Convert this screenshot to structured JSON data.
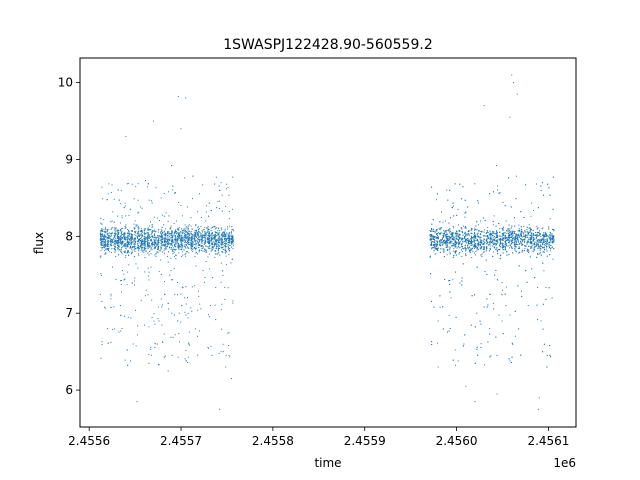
{
  "chart_data": {
    "type": "scatter",
    "title": "1SWASPJ122428.90-560559.2",
    "xlabel": "time",
    "ylabel": "flux",
    "x_offset_label": "1e6",
    "xlim": [
      2455590,
      2456130
    ],
    "ylim": [
      5.52,
      10.32
    ],
    "x_ticks": [
      2455600,
      2455700,
      2455800,
      2455900,
      2456000,
      2456100
    ],
    "x_tick_labels": [
      "2.4556",
      "2.4557",
      "2.4558",
      "2.4559",
      "2.4560",
      "2.4561"
    ],
    "y_ticks": [
      6,
      7,
      8,
      9,
      10
    ],
    "y_tick_labels": [
      "6",
      "7",
      "8",
      "9",
      "10"
    ],
    "grid": false,
    "legend": "none",
    "point_color": "#1f77b4",
    "series": [
      {
        "x": [
          2455615,
          2455618,
          2455622,
          2455625,
          2455628,
          2455632,
          2455636,
          2455640,
          2455643,
          2455647,
          2455650,
          2455653,
          2455657,
          2455660,
          2455664,
          2455667,
          2455671,
          2455674,
          2455678,
          2455681,
          2455685,
          2455688,
          2455692,
          2455695,
          2455699,
          2455702,
          2455706,
          2455709,
          2455713,
          2455716,
          2455720,
          2455724,
          2455727,
          2455731,
          2455734,
          2455738,
          2455741,
          2455745,
          2455749,
          2455752,
          2455755,
          2455974,
          2455977,
          2455981,
          2455984,
          2455988,
          2455991,
          2455995,
          2455998,
          2456002,
          2456005,
          2456009,
          2456012,
          2456016,
          2456019,
          2456023,
          2456026,
          2456030,
          2456033,
          2456037,
          2456040,
          2456044,
          2456047,
          2456051,
          2456054,
          2456058,
          2456061,
          2456065,
          2456068,
          2456072,
          2456075,
          2456079,
          2456082,
          2456086,
          2456089,
          2456093,
          2456096,
          2456100,
          2456103,
          2456106,
          2455620,
          2455634,
          2455648,
          2455662,
          2455676,
          2455690,
          2455704,
          2455718,
          2455732,
          2455746,
          2455980,
          2455994,
          2456008,
          2456022,
          2456036,
          2456050,
          2456064,
          2456078,
          2456092,
          2456104
        ],
        "y": [
          7.95,
          8.1,
          7.8,
          8.2,
          7.85,
          8.05,
          7.9,
          8.15,
          7.75,
          8.0,
          8.2,
          7.9,
          8.1,
          7.85,
          8.05,
          7.95,
          8.25,
          7.8,
          8.0,
          8.15,
          7.9,
          8.1,
          7.85,
          8.2,
          7.95,
          8.05,
          7.8,
          8.15,
          7.9,
          8.0,
          8.1,
          7.85,
          8.2,
          7.95,
          8.05,
          7.9,
          8.1,
          7.8,
          8.0,
          7.95,
          7.9,
          8.0,
          7.85,
          8.1,
          7.9,
          8.2,
          7.95,
          8.05,
          7.8,
          8.15,
          7.9,
          8.25,
          7.85,
          8.1,
          7.95,
          8.0,
          8.2,
          7.8,
          8.05,
          7.9,
          8.15,
          7.85,
          8.1,
          7.95,
          8.2,
          7.9,
          8.05,
          7.8,
          8.1,
          7.95,
          8.0,
          8.15,
          7.85,
          8.05,
          7.9,
          8.1,
          7.95,
          8.0,
          7.85,
          8.0,
          6.8,
          7.1,
          6.6,
          7.3,
          6.9,
          7.0,
          7.2,
          6.7,
          7.1,
          6.5,
          6.9,
          7.2,
          6.6,
          7.0,
          6.8,
          7.3,
          6.7,
          7.1,
          6.9,
          7.2
        ],
        "upper_outliers": {
          "x": [
            2455697,
            2455705,
            2455670,
            2456062,
            2456066,
            2455700,
            2456030,
            2456058,
            2455640,
            2456060
          ],
          "y": [
            9.82,
            9.8,
            9.5,
            10.0,
            9.85,
            9.4,
            9.7,
            9.55,
            9.3,
            10.1
          ]
        },
        "lower_outliers": {
          "x": [
            2455652,
            2455686,
            2455742,
            2456089,
            2456044,
            2456020,
            2455755,
            2456010,
            2455980,
            2456090
          ],
          "y": [
            5.85,
            6.25,
            5.75,
            5.75,
            5.95,
            5.85,
            6.15,
            6.05,
            6.3,
            5.9
          ]
        },
        "segments": [
          {
            "x_range": [
              2455612,
              2455758
            ],
            "y_center": 7.95
          },
          {
            "x_range": [
              2455971,
              2456107
            ],
            "y_center": 7.95
          }
        ]
      }
    ]
  }
}
